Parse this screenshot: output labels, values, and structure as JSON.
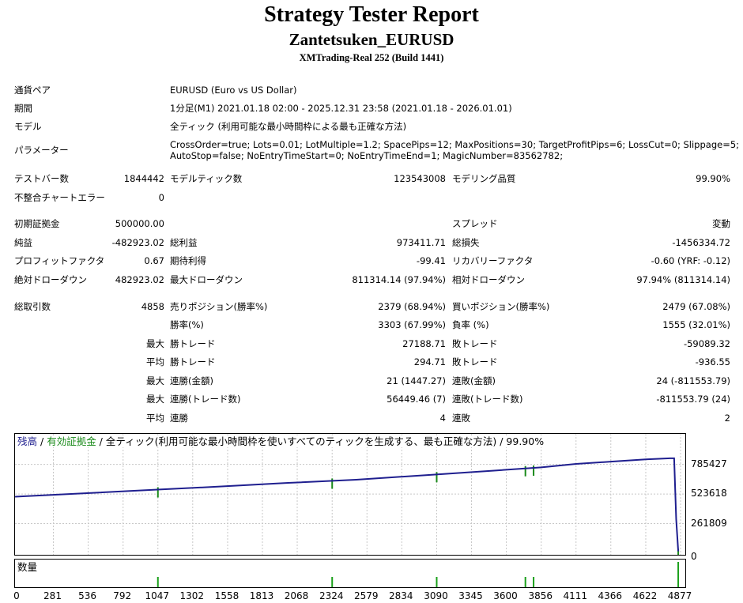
{
  "report": {
    "title": "Strategy Tester Report",
    "subtitle": "Zantetsuken_EURUSD",
    "server": "XMTrading-Real 252 (Build 1441)"
  },
  "info": {
    "symbol_label": "通貨ペア",
    "symbol_value": "EURUSD (Euro vs US Dollar)",
    "period_label": "期間",
    "period_value": "1分足(M1) 2021.01.18 02:00 - 2025.12.31 23:58 (2021.01.18 - 2026.01.01)",
    "model_label": "モデル",
    "model_value": "全ティック (利用可能な最小時間枠による最も正確な方法)",
    "params_label": "パラメーター",
    "params_line1": "CrossOrder=true; Lots=0.01; LotMultiple=1.2; SpacePips=12; MaxPositions=30; TargetProfitPips=6; LossCut=0; Slippage=5;",
    "params_line2": "AutoStop=false; NoEntryTimeStart=0; NoEntryTimeEnd=1; MagicNumber=83562782;"
  },
  "stats": {
    "bars_label": "テストバー数",
    "bars_value": "1844442",
    "ticks_label": "モデルティック数",
    "ticks_value": "123543008",
    "quality_label": "モデリング品質",
    "quality_value": "99.90%",
    "mismatch_label": "不整合チャートエラー",
    "mismatch_value": "0",
    "deposit_label": "初期証拠金",
    "deposit_value": "500000.00",
    "spread_label": "スプレッド",
    "spread_value": "変動",
    "netprofit_label": "純益",
    "netprofit_value": "-482923.02",
    "grossprofit_label": "総利益",
    "grossprofit_value": "973411.71",
    "grossloss_label": "総損失",
    "grossloss_value": "-1456334.72",
    "pf_label": "プロフィットファクタ",
    "pf_value": "0.67",
    "expected_label": "期待利得",
    "expected_value": "-99.41",
    "recovery_label": "リカバリーファクタ",
    "recovery_value": "-0.60 (YRF: -0.12)",
    "absdd_label": "絶対ドローダウン",
    "absdd_value": "482923.02",
    "maxdd_label": "最大ドローダウン",
    "maxdd_value": "811314.14 (97.94%)",
    "reldd_label": "相対ドローダウン",
    "reldd_value": "97.94% (811314.14)",
    "trades_label": "総取引数",
    "trades_value": "4858",
    "short_label": "売りポジション(勝率%)",
    "short_value": "2379 (68.94%)",
    "long_label": "買いポジション(勝率%)",
    "long_value": "2479 (67.08%)",
    "winrate_label": "勝率(%)",
    "winrate_value": "3303 (67.99%)",
    "lossrate_label": "負率 (%)",
    "lossrate_value": "1555 (32.01%)",
    "max1": "最大",
    "largest_win_label": "勝トレード",
    "largest_win_value": "27188.71",
    "largest_loss_label": "敗トレード",
    "largest_loss_value": "-59089.32",
    "avg1": "平均",
    "avg_win_label": "勝トレード",
    "avg_win_value": "294.71",
    "avg_loss_label": "敗トレード",
    "avg_loss_value": "-936.55",
    "max2": "最大",
    "consec_win_amt_label": "連勝(金額)",
    "consec_win_amt_value": "21 (1447.27)",
    "consec_loss_amt_label": "連敗(金額)",
    "consec_loss_amt_value": "24 (-811553.79)",
    "max3": "最大",
    "consec_win_cnt_label": "連勝(トレード数)",
    "consec_win_cnt_value": "56449.46 (7)",
    "consec_loss_cnt_label": "連敗(トレード数)",
    "consec_loss_cnt_value": "-811553.79 (24)",
    "avg2": "平均",
    "avg_consec_win_label": "連勝",
    "avg_consec_win_value": "4",
    "avg_consec_loss_label": "連敗",
    "avg_consec_loss_value": "2"
  },
  "chart_legend": {
    "balance": "残高",
    "sep1": " / ",
    "equity": "有効証拠金",
    "sep2": " / ",
    "rest": "全ティック(利用可能な最小時間枠を使いすべてのティックを生成する、最も正確な方法) / 99.90%",
    "volume": "数量",
    "balance_color": "#1f1f8f",
    "equity_color": "#1a8a1a"
  },
  "chart_data": {
    "type": "line",
    "y_ticks": [
      "785427",
      "523618",
      "261809",
      "0"
    ],
    "x_ticks": [
      "0",
      "281",
      "536",
      "792",
      "1047",
      "1302",
      "1558",
      "1813",
      "2068",
      "2324",
      "2579",
      "2834",
      "3090",
      "3345",
      "3600",
      "3856",
      "4111",
      "4366",
      "4622",
      "4877"
    ],
    "xlim": [
      0,
      4877
    ],
    "ylim": [
      0,
      1000000
    ],
    "series": [
      {
        "name": "残高",
        "x": [
          0,
          500,
          1000,
          1500,
          2000,
          2500,
          3000,
          3500,
          3856,
          4111,
          4366,
          4622,
          4800,
          4830,
          4845,
          4860
        ],
        "values": [
          500000,
          530000,
          560000,
          590000,
          622000,
          650000,
          690000,
          730000,
          760000,
          790000,
          810000,
          830000,
          840000,
          840000,
          300000,
          17000
        ]
      }
    ],
    "volume_spikes_x": [
      1047,
      2324,
      3090,
      3740,
      3800,
      4860
    ]
  }
}
